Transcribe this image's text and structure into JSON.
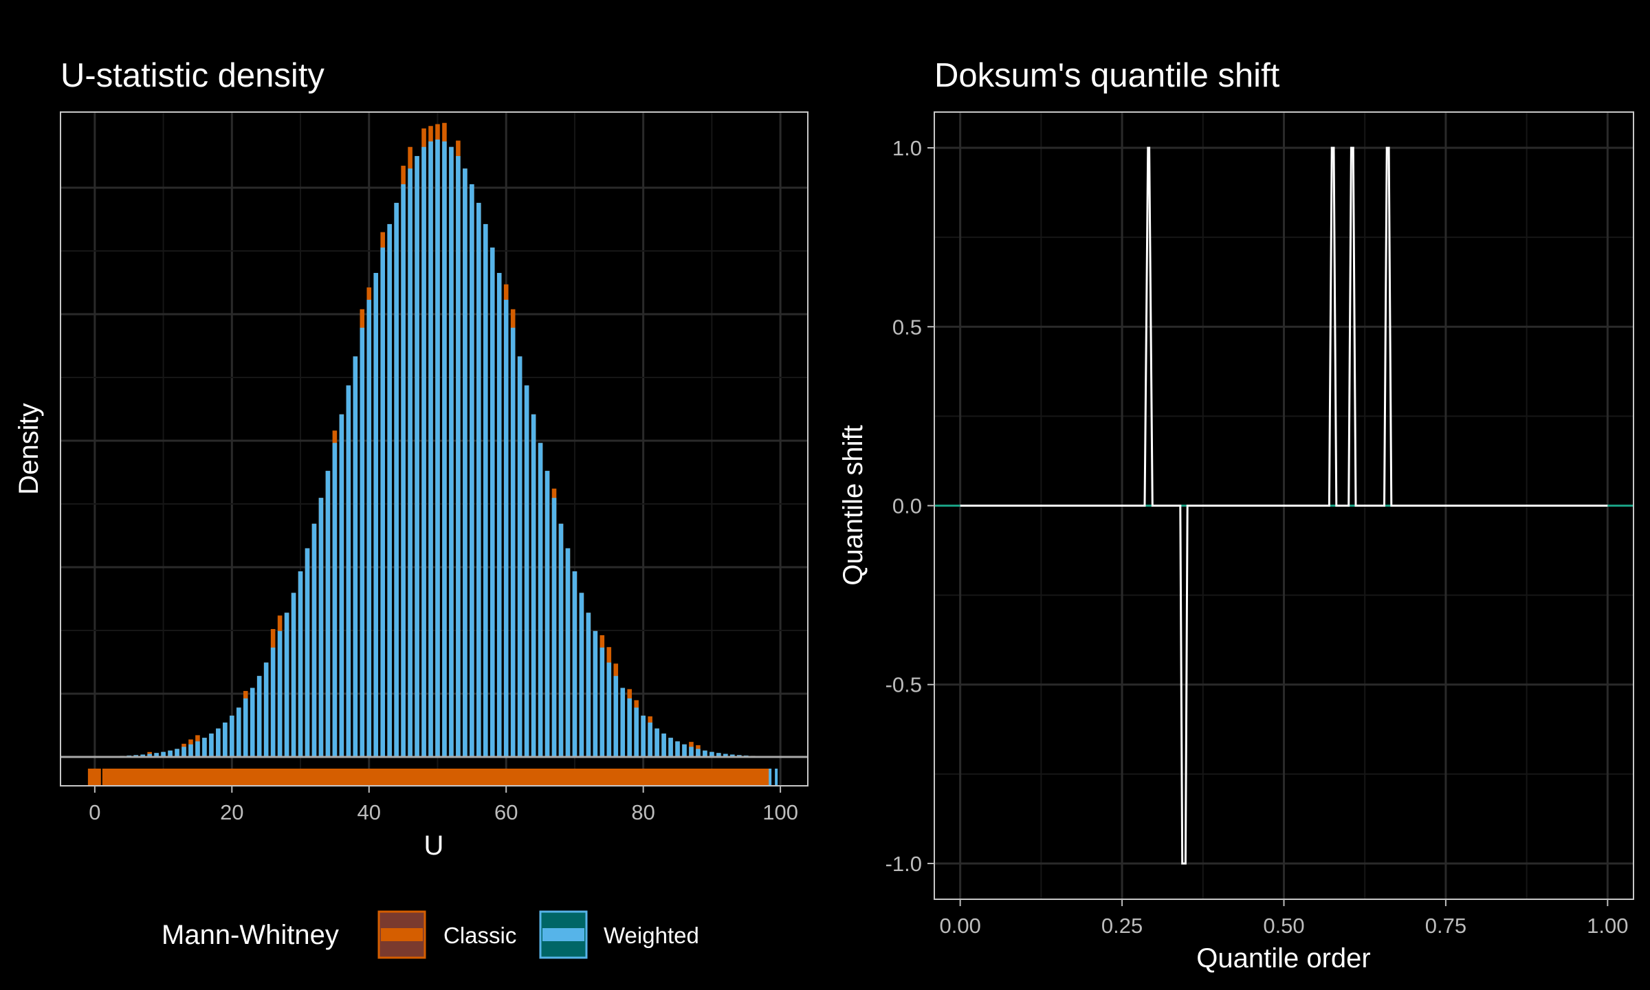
{
  "colors": {
    "background": "#000000",
    "panel_border": "#C8C8C8",
    "grid_major": "#2A2A2A",
    "grid_minor": "#161616",
    "tick_text": "#BDBDBD",
    "title_text": "#FFFFFF",
    "classic_fill": "#D55E00",
    "classic_legend_fill": "#7A3A2E",
    "weighted_fill": "#56B4E9",
    "weighted_legend_fill": "#006666",
    "shift_line": "#FFFFFF",
    "zero_line": "#1AA083",
    "baseline": "#AAAAAA"
  },
  "legend": {
    "title": "Mann-Whitney",
    "items": [
      {
        "label": "Classic",
        "icon": "classic-legend-key"
      },
      {
        "label": "Weighted",
        "icon": "weighted-legend-key"
      }
    ]
  },
  "chart_data": [
    {
      "type": "bar",
      "title": "U-statistic density",
      "xlabel": "U",
      "ylabel": "Density",
      "xlim": [
        -5,
        104
      ],
      "xticks": [
        0,
        20,
        40,
        60,
        80,
        100
      ],
      "xtick_labels": [
        "0",
        "20",
        "40",
        "60",
        "80",
        "100"
      ],
      "y_tick_labels_shown": false,
      "grid": true,
      "density_model": {
        "center": 50,
        "sd": 12.9,
        "peak": 1.0
      },
      "series": [
        {
          "name": "Classic",
          "extra_over_weighted": {
            "8": 0.003,
            "13": 0.005,
            "14": 0.008,
            "15": 0.01,
            "22": 0.012,
            "26": 0.03,
            "27": 0.025,
            "35": 0.02,
            "39": 0.03,
            "40": 0.02,
            "42": 0.025,
            "45": 0.03,
            "46": 0.035,
            "48": 0.03,
            "49": 0.025,
            "50": 0.025,
            "51": 0.03,
            "53": 0.025,
            "60": 0.025,
            "61": 0.03,
            "67": 0.015,
            "74": 0.02,
            "75": 0.025,
            "76": 0.02,
            "78": 0.015,
            "79": 0.012,
            "81": 0.01,
            "87": 0.008,
            "88": 0.006
          }
        },
        {
          "name": "Weighted"
        }
      ],
      "rug": {
        "classic_range": [
          -1,
          98.5
        ],
        "classic_marks": [
          1
        ],
        "weighted_marks": [
          98.5,
          99.4
        ]
      }
    },
    {
      "type": "line",
      "title": "Doksum's quantile shift",
      "xlabel": "Quantile order",
      "ylabel": "Quantile shift",
      "xlim": [
        -0.04,
        1.04
      ],
      "ylim": [
        -1.1,
        1.1
      ],
      "xticks": [
        0,
        0.25,
        0.5,
        0.75,
        1
      ],
      "xtick_labels": [
        "0.00",
        "0.25",
        "0.50",
        "0.75",
        "1.00"
      ],
      "yticks": [
        -1,
        -0.5,
        0,
        0.5,
        1
      ],
      "ytick_labels": [
        "-1.0",
        "-0.5",
        "0.0",
        "0.5",
        "1.0"
      ],
      "grid": true,
      "series": [
        {
          "x": [
            0,
            0.285,
            0.29,
            0.292,
            0.297,
            0.34,
            0.343,
            0.348,
            0.351,
            0.57,
            0.574,
            0.577,
            0.581,
            0.6,
            0.604,
            0.607,
            0.611,
            0.655,
            0.659,
            0.662,
            0.666,
            1
          ],
          "y": [
            0,
            0,
            1,
            1,
            0,
            0,
            -1,
            -1,
            0,
            0,
            1,
            1,
            0,
            0,
            1,
            1,
            0,
            0,
            1,
            1,
            0,
            0
          ]
        }
      ],
      "reference_line": {
        "y": 0
      }
    }
  ]
}
